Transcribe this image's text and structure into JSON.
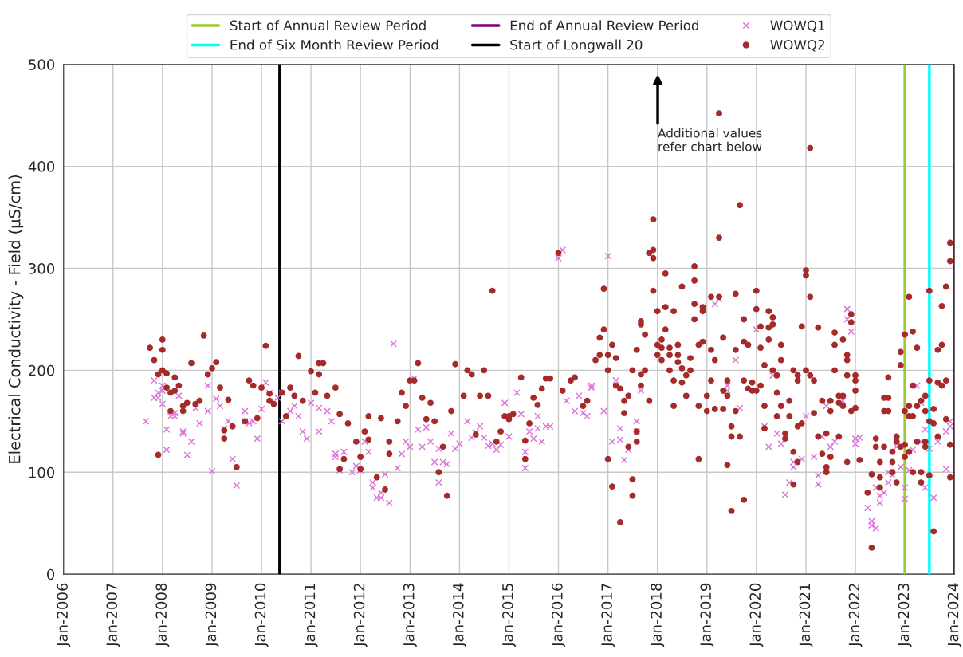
{
  "chart_data": {
    "type": "scatter",
    "ylabel": "Electrical Conductivity - Field (µS/cm)",
    "xlim": [
      "2006-01",
      "2024-01"
    ],
    "ylim": [
      0,
      500
    ],
    "yticks": [
      0,
      100,
      200,
      300,
      400,
      500
    ],
    "xticks": [
      {
        "value": "2006-01",
        "label": "Jan-2006"
      },
      {
        "value": "2007-01",
        "label": "Jan-2007"
      },
      {
        "value": "2008-01",
        "label": "Jan-2008"
      },
      {
        "value": "2009-01",
        "label": "Jan-2009"
      },
      {
        "value": "2010-01",
        "label": "Jan-2010"
      },
      {
        "value": "2011-01",
        "label": "Jan-2011"
      },
      {
        "value": "2012-01",
        "label": "Jan-2012"
      },
      {
        "value": "2013-01",
        "label": "Jan-2013"
      },
      {
        "value": "2014-01",
        "label": "Jan-2014"
      },
      {
        "value": "2015-01",
        "label": "Jan-2015"
      },
      {
        "value": "2016-01",
        "label": "Jan-2016"
      },
      {
        "value": "2017-01",
        "label": "Jan-2017"
      },
      {
        "value": "2018-01",
        "label": "Jan-2018"
      },
      {
        "value": "2019-01",
        "label": "Jan-2019"
      },
      {
        "value": "2020-01",
        "label": "Jan-2020"
      },
      {
        "value": "2021-01",
        "label": "Jan-2021"
      },
      {
        "value": "2022-01",
        "label": "Jan-2022"
      },
      {
        "value": "2023-01",
        "label": "Jan-2023"
      },
      {
        "value": "2024-01",
        "label": "Jan-2024"
      }
    ],
    "grid": true,
    "legend": "top",
    "ref_lines": [
      {
        "axis": "x",
        "value": "2023-01",
        "label": "Start of Annual Review Period",
        "color": "#9acd32"
      },
      {
        "axis": "x",
        "value": "2023-07",
        "label": "End of Six Month Review Period",
        "color": "#00ffff"
      },
      {
        "axis": "x",
        "value": "2024-01",
        "label": "End of Annual Review Period",
        "color": "#800080"
      },
      {
        "axis": "x",
        "value": "2010-05-15",
        "label": "Start of Longwall 20",
        "color": "#000000"
      }
    ],
    "annotations": [
      "Additional values\nrefer chart below"
    ],
    "series": [
      {
        "name": "WOWQ1",
        "color": "#da70d6",
        "marker": "cross",
        "x": [
          "2007-09",
          "2007-11",
          "2007-11",
          "2007-12",
          "2007-12",
          "2008-01",
          "2008-01",
          "2008-01",
          "2008-02",
          "2008-02",
          "2008-03",
          "2008-04",
          "2008-04",
          "2008-05",
          "2008-06",
          "2008-06",
          "2008-07",
          "2008-08",
          "2008-09",
          "2008-10",
          "2008-12",
          "2008-12",
          "2009-01",
          "2009-02",
          "2009-03",
          "2009-04",
          "2009-05",
          "2009-06",
          "2009-07",
          "2009-09",
          "2009-09",
          "2009-10",
          "2009-11",
          "2009-12",
          "2010-01",
          "2010-02",
          "2010-03",
          "2010-05",
          "2010-06",
          "2010-06",
          "2010-08",
          "2010-09",
          "2010-10",
          "2010-11",
          "2010-12",
          "2011-01",
          "2011-03",
          "2011-03",
          "2011-05",
          "2011-06",
          "2011-07",
          "2011-07",
          "2011-08",
          "2011-09",
          "2011-11",
          "2011-12",
          "2012-01",
          "2012-02",
          "2012-03",
          "2012-04",
          "2012-04",
          "2012-05",
          "2012-06",
          "2012-06",
          "2012-07",
          "2012-08",
          "2012-09",
          "2012-10",
          "2012-11",
          "2012-12",
          "2013-01",
          "2013-02",
          "2013-03",
          "2013-04",
          "2013-05",
          "2013-06",
          "2013-07",
          "2013-08",
          "2013-08",
          "2013-09",
          "2013-10",
          "2013-11",
          "2013-12",
          "2014-01",
          "2014-03",
          "2014-04",
          "2014-05",
          "2014-06",
          "2014-07",
          "2014-08",
          "2014-09",
          "2014-10",
          "2014-11",
          "2014-12",
          "2015-01",
          "2015-03",
          "2015-04",
          "2015-05",
          "2015-05",
          "2015-06",
          "2015-07",
          "2015-08",
          "2015-08",
          "2015-09",
          "2015-10",
          "2015-11",
          "2016-01",
          "2016-02",
          "2016-03",
          "2016-05",
          "2016-06",
          "2016-07",
          "2016-08",
          "2016-09",
          "2016-09",
          "2016-12",
          "2017-01",
          "2017-02",
          "2017-03",
          "2017-04",
          "2017-04",
          "2017-05",
          "2017-06",
          "2017-08",
          "2017-08",
          "2017-09",
          "2019-03",
          "2019-04",
          "2019-06",
          "2019-06",
          "2019-08",
          "2019-09",
          "2020-01",
          "2020-03",
          "2020-04",
          "2020-05",
          "2020-06",
          "2020-07",
          "2020-08",
          "2020-09",
          "2020-10",
          "2020-10",
          "2020-12",
          "2021-01",
          "2021-03",
          "2021-04",
          "2021-04",
          "2021-05",
          "2021-06",
          "2021-07",
          "2021-08",
          "2021-10",
          "2021-11",
          "2021-11",
          "2021-12",
          "2022-01",
          "2022-01",
          "2022-02",
          "2022-04",
          "2022-05",
          "2022-05",
          "2022-06",
          "2022-06",
          "2022-07",
          "2022-07",
          "2022-08",
          "2022-09",
          "2022-09",
          "2022-10",
          "2022-11",
          "2022-12",
          "2023-01",
          "2023-01",
          "2023-02",
          "2023-03",
          "2023-04",
          "2023-05",
          "2023-05",
          "2023-06",
          "2023-06",
          "2023-07",
          "2023-08",
          "2023-09",
          "2023-11",
          "2023-11",
          "2023-12",
          "2023-12"
        ],
        "values": [
          150,
          173,
          190,
          173,
          178,
          185,
          167,
          180,
          142,
          122,
          155,
          155,
          158,
          175,
          140,
          138,
          117,
          130,
          163,
          148,
          160,
          185,
          101,
          172,
          165,
          143,
          150,
          113,
          87,
          160,
          150,
          148,
          150,
          133,
          162,
          188,
          178,
          173,
          178,
          150,
          160,
          165,
          155,
          140,
          133,
          168,
          163,
          140,
          160,
          150,
          115,
          118,
          102,
          120,
          100,
          106,
          102,
          130,
          120,
          90,
          85,
          75,
          75,
          80,
          98,
          70,
          226,
          104,
          118,
          130,
          125,
          192,
          142,
          125,
          144,
          130,
          110,
          123,
          90,
          110,
          108,
          138,
          123,
          128,
          150,
          134,
          139,
          145,
          134,
          126,
          128,
          122,
          127,
          168,
          135,
          178,
          157,
          104,
          120,
          140,
          133,
          155,
          143,
          130,
          145,
          145,
          310,
          318,
          170,
          160,
          175,
          158,
          155,
          183,
          185,
          160,
          312,
          130,
          190,
          143,
          132,
          112,
          122,
          150,
          140,
          180,
          265,
          270,
          180,
          185,
          210,
          163,
          240,
          145,
          125,
          195,
          138,
          128,
          78,
          90,
          105,
          110,
          113,
          155,
          115,
          97,
          88,
          135,
          165,
          125,
          130,
          170,
          260,
          250,
          238,
          128,
          133,
          134,
          65,
          52,
          48,
          45,
          85,
          70,
          77,
          80,
          90,
          100,
          97,
          125,
          105,
          85,
          74,
          102,
          122,
          185,
          130,
          168,
          142,
          85,
          123,
          75,
          130,
          103,
          140,
          150,
          145
        ]
      },
      {
        "name": "WOWQ2",
        "color": "#a52a2a",
        "marker": "circle",
        "x": [
          "2007-10",
          "2007-11",
          "2007-12",
          "2007-12",
          "2008-01",
          "2008-01",
          "2008-01",
          "2008-02",
          "2008-02",
          "2008-03",
          "2008-03",
          "2008-04",
          "2008-04",
          "2008-05",
          "2008-06",
          "2008-06",
          "2008-07",
          "2008-08",
          "2008-09",
          "2008-10",
          "2008-11",
          "2008-12",
          "2009-01",
          "2009-02",
          "2009-03",
          "2009-04",
          "2009-04",
          "2009-05",
          "2009-06",
          "2009-07",
          "2009-09",
          "2009-10",
          "2009-11",
          "2009-12",
          "2010-01",
          "2010-02",
          "2010-03",
          "2010-03",
          "2010-04",
          "2010-06",
          "2010-07",
          "2010-08",
          "2010-09",
          "2010-10",
          "2010-11",
          "2011-01",
          "2011-02",
          "2011-03",
          "2011-03",
          "2011-04",
          "2011-05",
          "2011-07",
          "2011-08",
          "2011-08",
          "2011-09",
          "2011-10",
          "2011-12",
          "2012-01",
          "2012-01",
          "2012-02",
          "2012-03",
          "2012-03",
          "2012-05",
          "2012-06",
          "2012-07",
          "2012-08",
          "2012-08",
          "2012-10",
          "2012-11",
          "2012-12",
          "2013-01",
          "2013-02",
          "2013-03",
          "2013-04",
          "2013-05",
          "2013-06",
          "2013-07",
          "2013-08",
          "2013-09",
          "2013-10",
          "2013-11",
          "2013-12",
          "2014-02",
          "2014-03",
          "2014-04",
          "2014-05",
          "2014-06",
          "2014-07",
          "2014-08",
          "2014-09",
          "2014-10",
          "2014-11",
          "2014-12",
          "2015-01",
          "2015-01",
          "2015-02",
          "2015-04",
          "2015-05",
          "2015-05",
          "2015-06",
          "2015-07",
          "2015-08",
          "2015-09",
          "2015-10",
          "2015-11",
          "2016-01",
          "2016-02",
          "2016-04",
          "2016-05",
          "2016-07",
          "2016-08",
          "2016-10",
          "2016-11",
          "2016-11",
          "2016-12",
          "2016-12",
          "2017-01",
          "2017-01",
          "2017-01",
          "2017-02",
          "2017-02",
          "2017-03",
          "2017-03",
          "2017-04",
          "2017-04",
          "2017-05",
          "2017-05",
          "2017-06",
          "2017-06",
          "2017-07",
          "2017-07",
          "2017-07",
          "2017-08",
          "2017-08",
          "2017-08",
          "2017-09",
          "2017-09",
          "2017-09",
          "2017-09",
          "2017-10",
          "2017-10",
          "2017-11",
          "2017-11",
          "2017-12",
          "2017-12",
          "2017-12",
          "2017-12",
          "2018-01",
          "2018-01",
          "2018-01",
          "2018-02",
          "2018-02",
          "2018-02",
          "2018-03",
          "2018-03",
          "2018-03",
          "2018-04",
          "2018-04",
          "2018-04",
          "2018-05",
          "2018-05",
          "2018-05",
          "2018-06",
          "2018-06",
          "2018-06",
          "2018-07",
          "2018-07",
          "2018-07",
          "2018-08",
          "2018-08",
          "2018-09",
          "2018-09",
          "2018-10",
          "2018-10",
          "2018-10",
          "2018-10",
          "2018-11",
          "2018-11",
          "2018-11",
          "2018-12",
          "2018-12",
          "2018-12",
          "2019-01",
          "2019-01",
          "2019-02",
          "2019-02",
          "2019-02",
          "2019-03",
          "2019-03",
          "2019-04",
          "2019-04",
          "2019-04",
          "2019-05",
          "2019-05",
          "2019-05",
          "2019-06",
          "2019-06",
          "2019-06",
          "2019-07",
          "2019-07",
          "2019-07",
          "2019-08",
          "2019-08",
          "2019-08",
          "2019-09",
          "2019-09",
          "2019-10",
          "2019-10",
          "2019-10",
          "2019-10",
          "2019-11",
          "2019-11",
          "2019-12",
          "2019-12",
          "2020-01",
          "2020-01",
          "2020-01",
          "2020-02",
          "2020-02",
          "2020-02",
          "2020-03",
          "2020-03",
          "2020-03",
          "2020-04",
          "2020-04",
          "2020-04",
          "2020-05",
          "2020-05",
          "2020-05",
          "2020-06",
          "2020-06",
          "2020-06",
          "2020-07",
          "2020-07",
          "2020-07",
          "2020-08",
          "2020-08",
          "2020-09",
          "2020-09",
          "2020-10",
          "2020-10",
          "2020-10",
          "2020-11",
          "2020-11",
          "2020-11",
          "2020-11",
          "2020-12",
          "2020-12",
          "2021-01",
          "2021-01",
          "2021-01",
          "2021-02",
          "2021-02",
          "2021-02",
          "2021-03",
          "2021-03",
          "2021-04",
          "2021-04",
          "2021-05",
          "2021-05",
          "2021-06",
          "2021-06",
          "2021-06",
          "2021-07",
          "2021-07",
          "2021-07",
          "2021-08",
          "2021-08",
          "2021-08",
          "2021-09",
          "2021-09",
          "2021-09",
          "2021-10",
          "2021-10",
          "2021-10",
          "2021-11",
          "2021-11",
          "2021-11",
          "2021-11",
          "2021-12",
          "2021-12",
          "2021-12",
          "2022-01",
          "2022-01",
          "2022-01",
          "2022-01",
          "2022-02",
          "2022-04",
          "2022-05",
          "2022-05",
          "2022-06",
          "2022-06",
          "2022-07",
          "2022-07",
          "2022-07",
          "2022-08",
          "2022-08",
          "2022-08",
          "2022-09",
          "2022-09",
          "2022-09",
          "2022-10",
          "2022-10",
          "2022-10",
          "2022-11",
          "2022-11",
          "2022-11",
          "2022-12",
          "2022-12",
          "2022-12",
          "2023-01",
          "2023-01",
          "2023-01",
          "2023-01",
          "2023-02",
          "2023-02",
          "2023-02",
          "2023-02",
          "2023-03",
          "2023-03",
          "2023-03",
          "2023-03",
          "2023-04",
          "2023-04",
          "2023-04",
          "2023-05",
          "2023-05",
          "2023-05",
          "2023-06",
          "2023-06",
          "2023-06",
          "2023-06",
          "2023-07",
          "2023-07",
          "2023-07",
          "2023-07",
          "2023-08",
          "2023-08",
          "2023-08",
          "2023-09",
          "2023-09",
          "2023-09",
          "2023-10",
          "2023-10",
          "2023-10",
          "2023-11",
          "2023-11",
          "2023-11",
          "2023-12",
          "2023-12",
          "2023-12",
          "2023-12"
        ],
        "values": [
          222,
          210,
          196,
          117,
          220,
          230,
          200,
          197,
          183,
          160,
          178,
          193,
          180,
          185,
          160,
          165,
          168,
          207,
          167,
          170,
          234,
          196,
          202,
          208,
          183,
          133,
          141,
          171,
          145,
          105,
          150,
          190,
          185,
          153,
          183,
          224,
          177,
          170,
          167,
          178,
          155,
          183,
          175,
          214,
          170,
          199,
          178,
          196,
          207,
          207,
          175,
          183,
          103,
          157,
          113,
          148,
          130,
          103,
          115,
          140,
          155,
          132,
          95,
          153,
          83,
          118,
          130,
          150,
          178,
          165,
          190,
          190,
          207,
          173,
          152,
          168,
          150,
          100,
          125,
          77,
          160,
          206,
          175,
          200,
          196,
          137,
          175,
          200,
          175,
          278,
          130,
          140,
          155,
          152,
          155,
          157,
          193,
          113,
          131,
          148,
          173,
          166,
          182,
          192,
          192,
          315,
          180,
          190,
          193,
          165,
          170,
          210,
          215,
          232,
          240,
          280,
          215,
          200,
          113,
          225,
          86,
          212,
          185,
          51,
          182,
          170,
          158,
          175,
          125,
          77,
          93,
          200,
          140,
          130,
          220,
          245,
          248,
          185,
          196,
          235,
          200,
          315,
          170,
          310,
          348,
          318,
          278,
          225,
          215,
          258,
          230,
          222,
          210,
          262,
          295,
          240,
          222,
          215,
          200,
          258,
          190,
          165,
          225,
          215,
          208,
          282,
          202,
          188,
          195,
          175,
          212,
          200,
          265,
          250,
          302,
          288,
          165,
          113,
          225,
          258,
          262,
          228,
          175,
          160,
          272,
          220,
          190,
          162,
          210,
          452,
          330,
          272,
          232,
          180,
          162,
          107,
          190,
          175,
          145,
          135,
          62,
          275,
          220,
          160,
          362,
          135,
          250,
          228,
          190,
          73,
          225,
          182,
          188,
          180,
          278,
          260,
          180,
          243,
          222,
          185,
          205,
          165,
          143,
          242,
          258,
          230,
          245,
          252,
          200,
          195,
          155,
          178,
          225,
          210,
          165,
          133,
          138,
          155,
          170,
          200,
          88,
          120,
          190,
          195,
          145,
          110,
          243,
          148,
          298,
          293,
          200,
          272,
          418,
          195,
          190,
          158,
          242,
          135,
          170,
          118,
          105,
          100,
          138,
          160,
          170,
          115,
          237,
          225,
          200,
          168,
          175,
          135,
          230,
          175,
          165,
          210,
          215,
          195,
          110,
          255,
          247,
          160,
          190,
          195,
          180,
          163,
          112,
          80,
          98,
          26,
          133,
          125,
          110,
          95,
          85,
          160,
          173,
          125,
          193,
          173,
          160,
          120,
          110,
          100,
          135,
          130,
          90,
          205,
          218,
          125,
          235,
          160,
          115,
          127,
          272,
          120,
          165,
          155,
          238,
          185,
          155,
          100,
          222,
          165,
          130,
          170,
          90,
          100,
          175,
          160,
          130,
          125,
          278,
          190,
          150,
          97,
          42,
          148,
          162,
          220,
          188,
          135,
          225,
          263,
          185,
          282,
          190,
          152,
          95,
          127,
          325,
          307
        ]
      }
    ]
  }
}
